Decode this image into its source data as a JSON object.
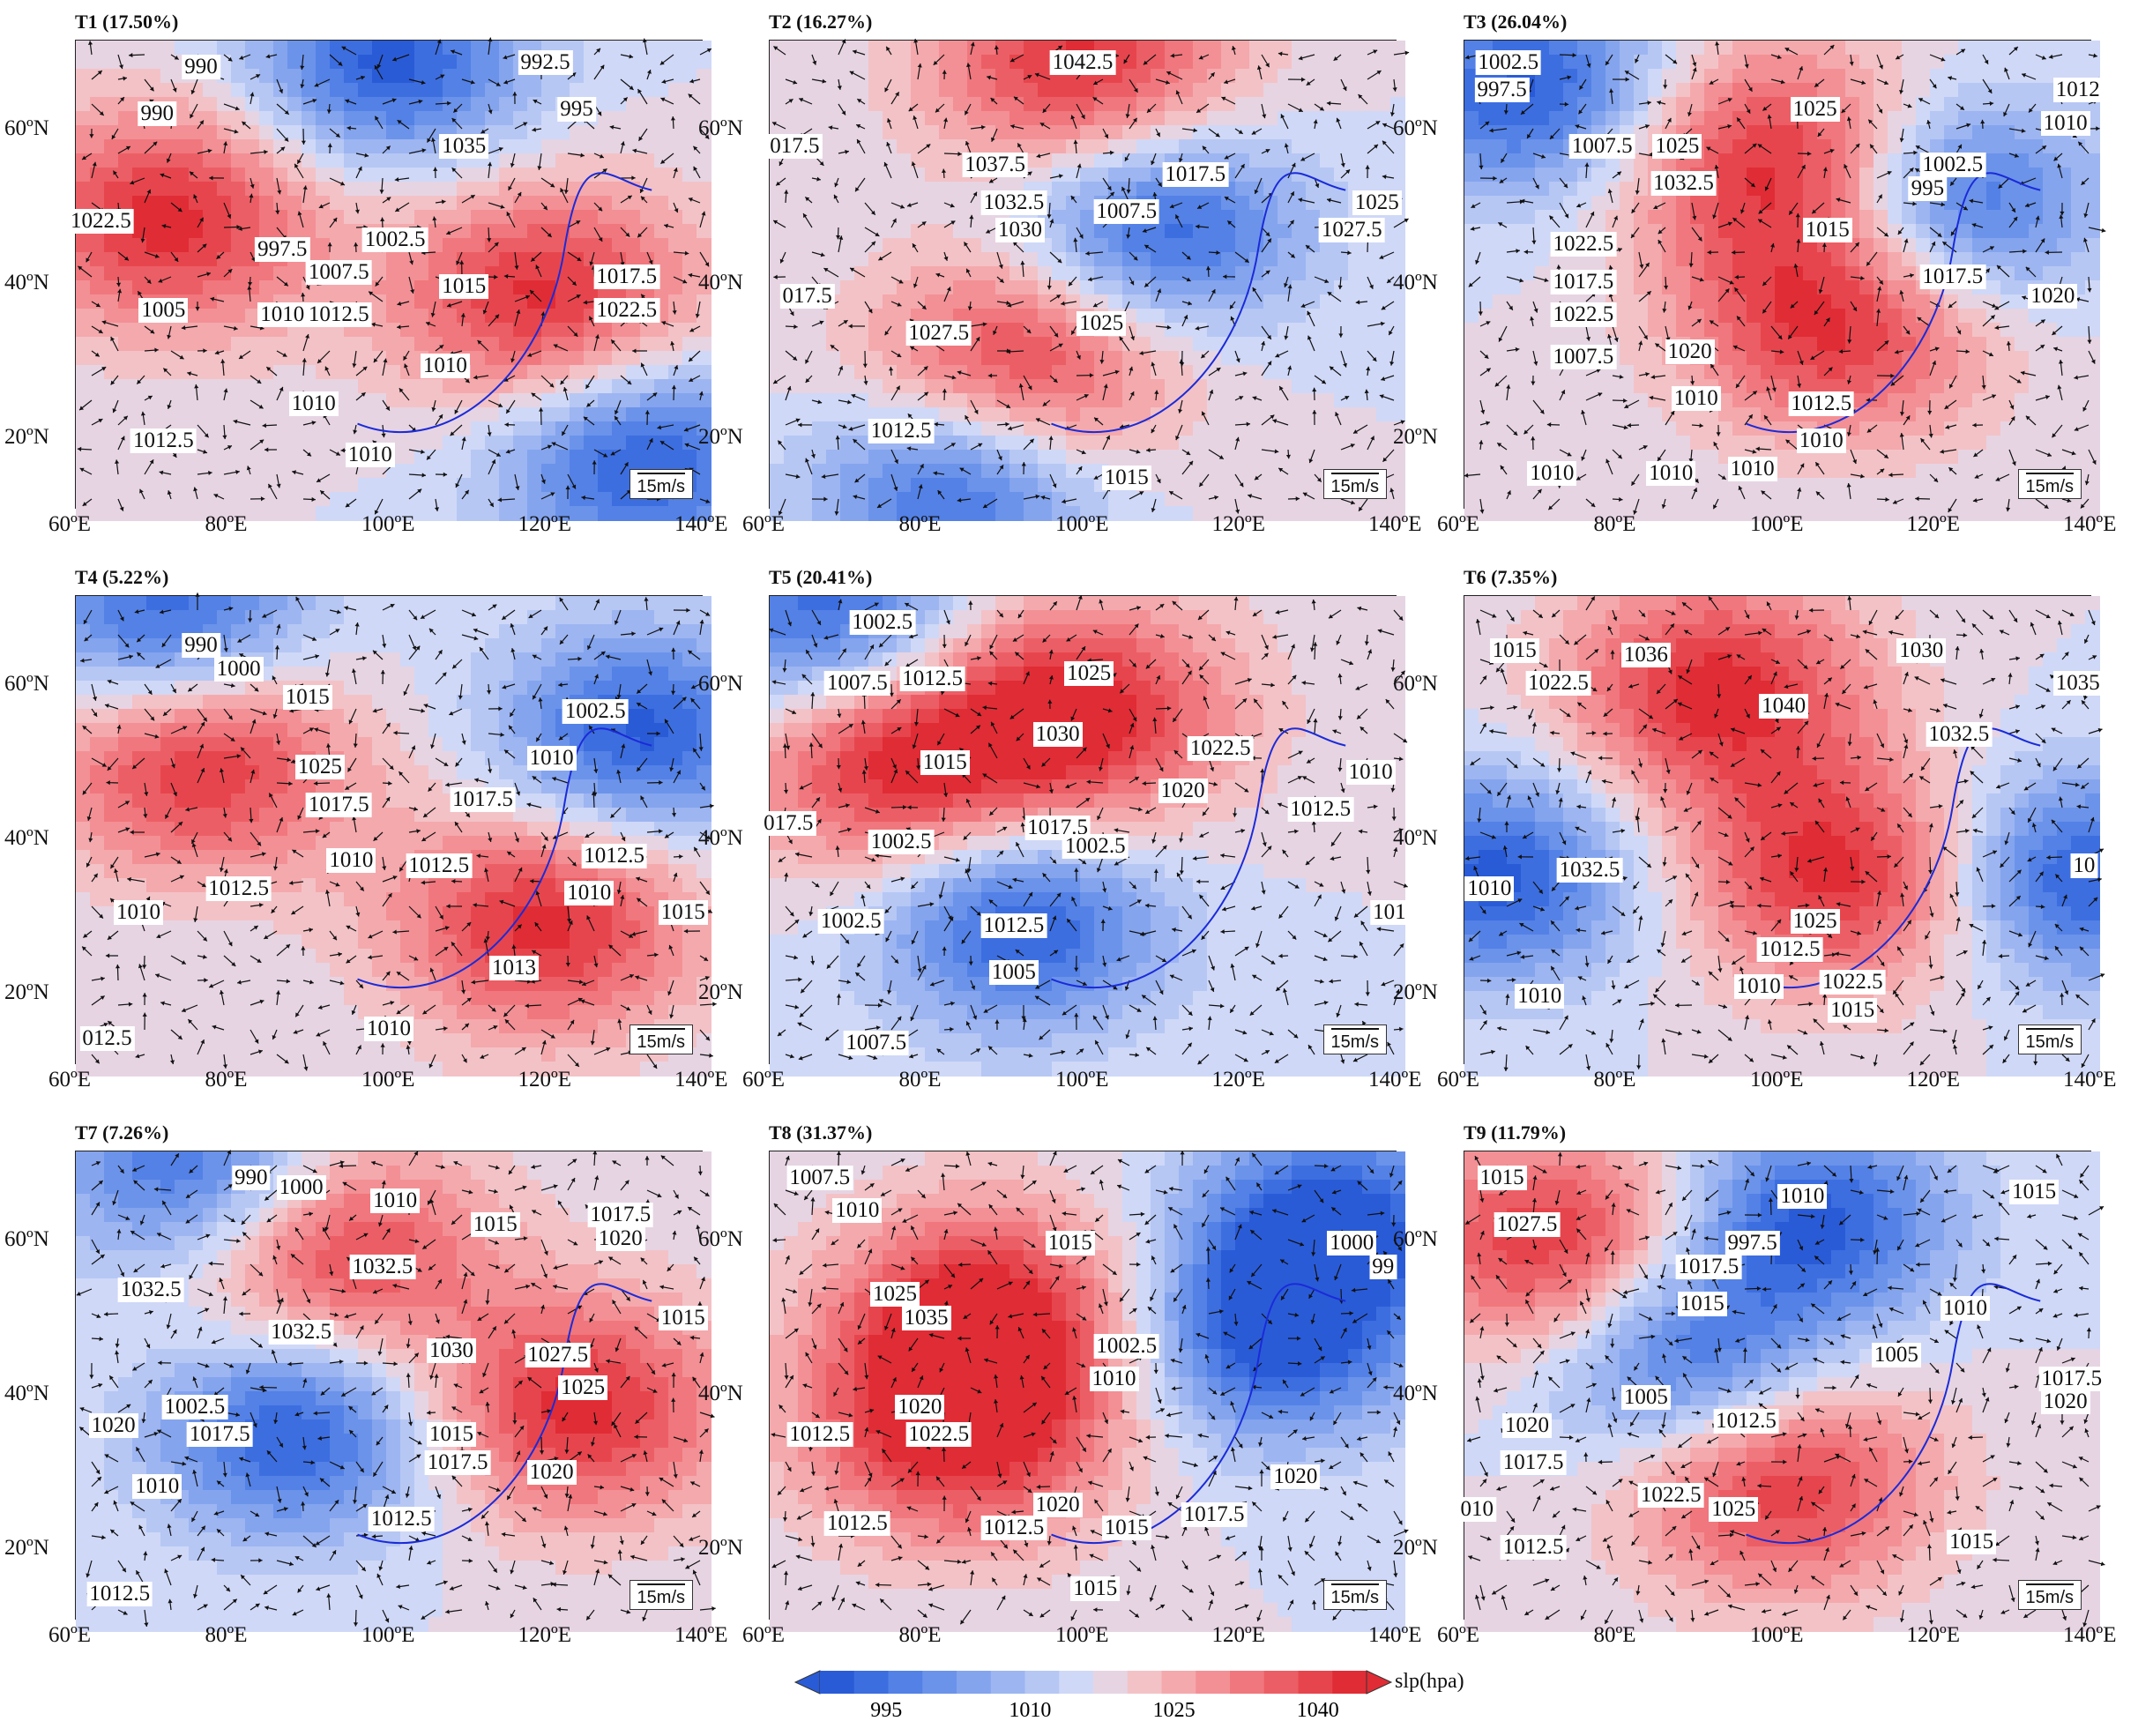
{
  "panels": [
    {
      "id": "T1",
      "title": "T1 (17.50%)",
      "hi": [
        [
          0.15,
          0.38
        ],
        [
          0.75,
          0.55
        ]
      ],
      "lo": [
        [
          0.5,
          0.05
        ],
        [
          0.9,
          0.9
        ]
      ],
      "labels": [
        "990",
        "990",
        "992.5",
        "995",
        "1035",
        "1022.5",
        "997.5",
        "1002.5",
        "1007.5",
        "1015",
        "1017.5",
        "1022.5",
        "1005",
        "1010",
        "1012.5",
        "1010",
        "1010",
        "1012.5",
        "1010"
      ]
    },
    {
      "id": "T2",
      "title": "T2 (16.27%)",
      "hi": [
        [
          0.5,
          0.05
        ],
        [
          0.4,
          0.7
        ]
      ],
      "lo": [
        [
          0.62,
          0.4
        ],
        [
          0.3,
          0.95
        ]
      ],
      "labels": [
        "1042.5",
        "017.5",
        "1037.5",
        "1017.5",
        "1032.5",
        "1007.5",
        "1030",
        "1025",
        "1027.5",
        "017.5",
        "1027.5",
        "1025",
        "1012.5",
        "1015"
      ]
    },
    {
      "id": "T3",
      "title": "T3 (26.04%)",
      "hi": [
        [
          0.5,
          0.25
        ],
        [
          0.6,
          0.6
        ]
      ],
      "lo": [
        [
          0.1,
          0.1
        ],
        [
          0.78,
          0.35
        ]
      ],
      "labels": [
        "1002.5",
        "997.5",
        "1025",
        "1012",
        "1010",
        "1007.5",
        "1025",
        "1002.5",
        "1032.5",
        "995",
        "1022.5",
        "1015",
        "1017.5",
        "1017.5",
        "1020",
        "1022.5",
        "1020",
        "1007.5",
        "1010",
        "1012.5",
        "1010",
        "1010",
        "1010",
        "1010"
      ]
    },
    {
      "id": "T4",
      "title": "T4 (5.22%)",
      "hi": [
        [
          0.2,
          0.35
        ],
        [
          0.75,
          0.7
        ]
      ],
      "lo": [
        [
          0.15,
          0.05
        ],
        [
          0.9,
          0.3
        ]
      ],
      "labels": [
        "990",
        "1000",
        "1015",
        "1002.5",
        "1025",
        "1010",
        "1017.5",
        "1017.5",
        "1010",
        "1012.5",
        "1012.5",
        "1012.5",
        "1010",
        "1010",
        "1015",
        "1013",
        "012.5",
        "1010"
      ]
    },
    {
      "id": "T5",
      "title": "T5 (20.41%)",
      "hi": [
        [
          0.5,
          0.25
        ],
        [
          0.2,
          0.35
        ]
      ],
      "lo": [
        [
          0.1,
          0.05
        ],
        [
          0.4,
          0.7
        ]
      ],
      "labels": [
        "1002.5",
        "1007.5",
        "1012.5",
        "1025",
        "1015",
        "1030",
        "1022.5",
        "1010",
        "1020",
        "1012.5",
        "017.5",
        "1017.5",
        "1002.5",
        "1002.5",
        "1012.5",
        "1002.5",
        "1005",
        "1007.5",
        "101"
      ]
    },
    {
      "id": "T6",
      "title": "T6 (7.35%)",
      "hi": [
        [
          0.4,
          0.2
        ],
        [
          0.6,
          0.6
        ]
      ],
      "lo": [
        [
          0.05,
          0.6
        ],
        [
          0.98,
          0.6
        ]
      ],
      "labels": [
        "1015",
        "1036",
        "1030",
        "1022.5",
        "1035",
        "1040",
        "1032.5",
        "1010",
        "1032.5",
        "1025",
        "1012.5",
        "1010",
        "1022.5",
        "1015",
        "1010",
        "10"
      ]
    },
    {
      "id": "T7",
      "title": "T7 (7.26%)",
      "hi": [
        [
          0.4,
          0.2
        ],
        [
          0.8,
          0.55
        ]
      ],
      "lo": [
        [
          0.2,
          0.05
        ],
        [
          0.35,
          0.6
        ]
      ],
      "labels": [
        "990",
        "1000",
        "1010",
        "1015",
        "1017.5",
        "1020",
        "1032.5",
        "1032.5",
        "1015",
        "1032.5",
        "1030",
        "1027.5",
        "1025",
        "1020",
        "1002.5",
        "1017.5",
        "1015",
        "1017.5",
        "1010",
        "1012.5",
        "1020",
        "1012.5"
      ]
    },
    {
      "id": "T8",
      "title": "T8 (31.37%)",
      "hi": [
        [
          0.35,
          0.35
        ],
        [
          0.3,
          0.6
        ]
      ],
      "lo": [
        [
          0.8,
          0.4
        ],
        [
          0.9,
          0.15
        ]
      ],
      "labels": [
        "1007.5",
        "1010",
        "1015",
        "1000",
        "99",
        "1025",
        "1035",
        "1002.5",
        "1010",
        "1020",
        "1012.5",
        "1022.5",
        "1020",
        "1020",
        "1012.5",
        "1012.5",
        "1015",
        "1017.5",
        "1015"
      ]
    },
    {
      "id": "T9",
      "title": "T9 (11.79%)",
      "hi": [
        [
          0.15,
          0.2
        ],
        [
          0.5,
          0.7
        ]
      ],
      "lo": [
        [
          0.55,
          0.15
        ],
        [
          0.35,
          0.45
        ]
      ],
      "labels": [
        "1015",
        "1010",
        "1015",
        "1027.5",
        "997.5",
        "1017.5",
        "1015",
        "1010",
        "1005",
        "1017.5",
        "1005",
        "1020",
        "1012.5",
        "1020",
        "1017.5",
        "1022.5",
        "1025",
        "010",
        "1012.5",
        "1015"
      ]
    }
  ],
  "axes": {
    "x_ticks": [
      "60ºE",
      "80ºE",
      "100ºE",
      "120ºE",
      "140ºE"
    ],
    "y_ticks": [
      "60ºN",
      "40ºN",
      "20ºN"
    ]
  },
  "scale_label": "15m/s",
  "colorbar": {
    "ticks": [
      "995",
      "1010",
      "1025",
      "1040"
    ],
    "label": "slp(hpa)",
    "colors": [
      "#2a5bd7",
      "#3d6ee0",
      "#5381e6",
      "#6b93ea",
      "#84a4ee",
      "#9db5f1",
      "#b6c7f4",
      "#cfd8f7",
      "#e6d4e3",
      "#f3c2c6",
      "#f4a9ad",
      "#f39095",
      "#f0777d",
      "#ec5e65",
      "#e7454d",
      "#e02c35"
    ]
  }
}
